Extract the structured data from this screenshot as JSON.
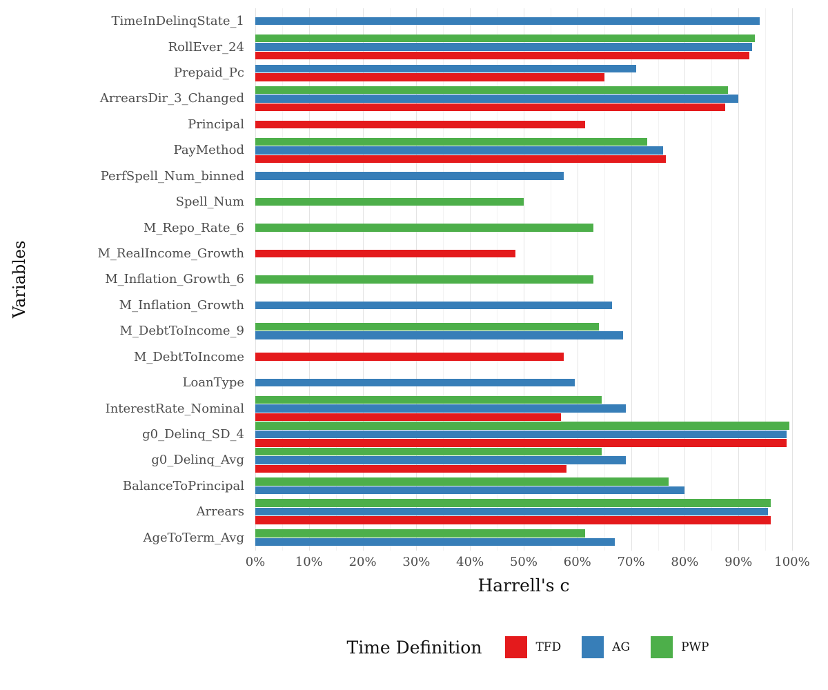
{
  "chart_data": {
    "type": "bar",
    "orientation": "horizontal",
    "grouped": true,
    "title": "",
    "xlabel": "Harrell's c",
    "ylabel": "Variables",
    "xlim": [
      0,
      100
    ],
    "x_tick_labels": [
      "0%",
      "10%",
      "20%",
      "30%",
      "40%",
      "50%",
      "60%",
      "70%",
      "80%",
      "90%",
      "100%"
    ],
    "grid": "vertical major gridlines light gray, white background, no panel border",
    "grid_color": "#e3e3e3",
    "tick_label_color": "#4d4d4d",
    "axis_title_color": "#111111",
    "legend": {
      "title": "Time Definition",
      "position": "bottom",
      "entries": [
        {
          "name": "TFD",
          "color": "#e41a1c"
        },
        {
          "name": "AG",
          "color": "#377eb8"
        },
        {
          "name": "PWP",
          "color": "#4daf4a"
        }
      ]
    },
    "colors": {
      "TFD": "#e41a1c",
      "AG": "#377eb8",
      "PWP": "#4daf4a"
    },
    "series_display_order_top_to_bottom": [
      "PWP",
      "AG",
      "TFD"
    ],
    "rows": [
      {
        "label": "TimeInDelinqState_1",
        "TFD": null,
        "AG": 94,
        "PWP": null
      },
      {
        "label": "RollEver_24",
        "TFD": 92,
        "AG": 92.5,
        "PWP": 93
      },
      {
        "label": "Prepaid_Pc",
        "TFD": 65,
        "AG": 71,
        "PWP": null
      },
      {
        "label": "ArrearsDir_3_Changed",
        "TFD": 87.5,
        "AG": 90,
        "PWP": 88
      },
      {
        "label": "Principal",
        "TFD": 61.5,
        "AG": null,
        "PWP": null
      },
      {
        "label": "PayMethod",
        "TFD": 76.5,
        "AG": 76,
        "PWP": 73
      },
      {
        "label": "PerfSpell_Num_binned",
        "TFD": null,
        "AG": 57.5,
        "PWP": null
      },
      {
        "label": "Spell_Num",
        "TFD": null,
        "AG": null,
        "PWP": 50
      },
      {
        "label": "M_Repo_Rate_6",
        "TFD": null,
        "AG": null,
        "PWP": 63
      },
      {
        "label": "M_RealIncome_Growth",
        "TFD": 48.5,
        "AG": null,
        "PWP": null
      },
      {
        "label": "M_Inflation_Growth_6",
        "TFD": null,
        "AG": null,
        "PWP": 63
      },
      {
        "label": "M_Inflation_Growth",
        "TFD": null,
        "AG": 66.5,
        "PWP": null
      },
      {
        "label": "M_DebtToIncome_9",
        "TFD": null,
        "AG": 68.5,
        "PWP": 64
      },
      {
        "label": "M_DebtToIncome",
        "TFD": 57.5,
        "AG": null,
        "PWP": null
      },
      {
        "label": "LoanType",
        "TFD": null,
        "AG": 59.5,
        "PWP": null
      },
      {
        "label": "InterestRate_Nominal",
        "TFD": 57,
        "AG": 69,
        "PWP": 64.5
      },
      {
        "label": "g0_Delinq_SD_4",
        "TFD": 99,
        "AG": 99,
        "PWP": 99.5
      },
      {
        "label": "g0_Delinq_Avg",
        "TFD": 58,
        "AG": 69,
        "PWP": 64.5
      },
      {
        "label": "BalanceToPrincipal",
        "TFD": null,
        "AG": 80,
        "PWP": 77
      },
      {
        "label": "Arrears",
        "TFD": 96,
        "AG": 95.5,
        "PWP": 96
      },
      {
        "label": "AgeToTerm_Avg",
        "TFD": null,
        "AG": 67,
        "PWP": 61.5
      }
    ]
  }
}
